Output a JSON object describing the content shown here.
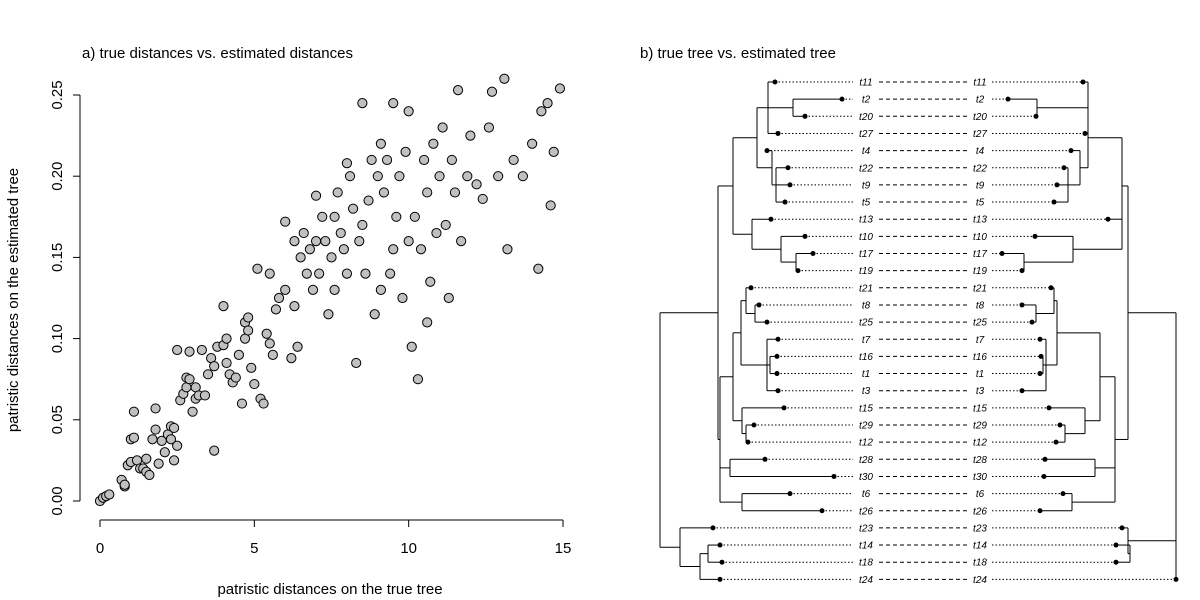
{
  "chart_data": [
    {
      "type": "scatter",
      "title": "a) true distances vs. estimated distances",
      "xlabel": "patristic distances on the true tree",
      "ylabel": "patristic distances on the estimated tree",
      "xlim": [
        0,
        15
      ],
      "ylim": [
        0,
        0.25
      ],
      "x_ticks": [
        "0",
        "5",
        "10",
        "15"
      ],
      "y_ticks": [
        "0.00",
        "0.05",
        "0.10",
        "0.15",
        "0.20",
        "0.25"
      ],
      "point_color": "#c0c0c0",
      "points": [
        [
          0.0,
          0.0
        ],
        [
          0.1,
          0.002
        ],
        [
          0.2,
          0.003
        ],
        [
          0.3,
          0.004
        ],
        [
          0.7,
          0.013
        ],
        [
          0.8,
          0.009
        ],
        [
          0.8,
          0.01
        ],
        [
          0.9,
          0.022
        ],
        [
          1.0,
          0.024
        ],
        [
          1.0,
          0.038
        ],
        [
          1.1,
          0.039
        ],
        [
          1.1,
          0.055
        ],
        [
          1.2,
          0.025
        ],
        [
          1.3,
          0.02
        ],
        [
          1.4,
          0.02
        ],
        [
          1.5,
          0.026
        ],
        [
          1.5,
          0.018
        ],
        [
          1.6,
          0.016
        ],
        [
          1.7,
          0.038
        ],
        [
          1.8,
          0.044
        ],
        [
          1.8,
          0.057
        ],
        [
          1.9,
          0.023
        ],
        [
          2.0,
          0.037
        ],
        [
          2.1,
          0.03
        ],
        [
          2.2,
          0.041
        ],
        [
          2.3,
          0.038
        ],
        [
          2.3,
          0.046
        ],
        [
          2.4,
          0.025
        ],
        [
          2.4,
          0.045
        ],
        [
          2.5,
          0.034
        ],
        [
          2.5,
          0.093
        ],
        [
          2.6,
          0.062
        ],
        [
          2.7,
          0.066
        ],
        [
          2.8,
          0.07
        ],
        [
          2.8,
          0.076
        ],
        [
          2.9,
          0.075
        ],
        [
          2.9,
          0.092
        ],
        [
          3.0,
          0.055
        ],
        [
          3.1,
          0.063
        ],
        [
          3.1,
          0.07
        ],
        [
          3.2,
          0.065
        ],
        [
          3.3,
          0.093
        ],
        [
          3.4,
          0.065
        ],
        [
          3.5,
          0.078
        ],
        [
          3.6,
          0.088
        ],
        [
          3.7,
          0.083
        ],
        [
          3.7,
          0.031
        ],
        [
          3.8,
          0.095
        ],
        [
          4.0,
          0.096
        ],
        [
          4.0,
          0.12
        ],
        [
          4.1,
          0.085
        ],
        [
          4.1,
          0.1
        ],
        [
          4.2,
          0.078
        ],
        [
          4.3,
          0.073
        ],
        [
          4.4,
          0.076
        ],
        [
          4.5,
          0.09
        ],
        [
          4.6,
          0.06
        ],
        [
          4.7,
          0.1
        ],
        [
          4.7,
          0.11
        ],
        [
          4.8,
          0.105
        ],
        [
          4.8,
          0.113
        ],
        [
          4.9,
          0.082
        ],
        [
          5.0,
          0.072
        ],
        [
          5.1,
          0.143
        ],
        [
          5.2,
          0.063
        ],
        [
          5.3,
          0.06
        ],
        [
          5.4,
          0.103
        ],
        [
          5.5,
          0.097
        ],
        [
          5.5,
          0.14
        ],
        [
          5.6,
          0.09
        ],
        [
          5.7,
          0.118
        ],
        [
          5.8,
          0.125
        ],
        [
          6.0,
          0.13
        ],
        [
          6.0,
          0.172
        ],
        [
          6.2,
          0.088
        ],
        [
          6.3,
          0.16
        ],
        [
          6.3,
          0.12
        ],
        [
          6.4,
          0.095
        ],
        [
          6.5,
          0.15
        ],
        [
          6.6,
          0.165
        ],
        [
          6.7,
          0.14
        ],
        [
          6.8,
          0.155
        ],
        [
          6.9,
          0.13
        ],
        [
          7.0,
          0.16
        ],
        [
          7.0,
          0.188
        ],
        [
          7.1,
          0.14
        ],
        [
          7.2,
          0.175
        ],
        [
          7.3,
          0.16
        ],
        [
          7.4,
          0.115
        ],
        [
          7.5,
          0.15
        ],
        [
          7.6,
          0.13
        ],
        [
          7.6,
          0.175
        ],
        [
          7.7,
          0.19
        ],
        [
          7.8,
          0.165
        ],
        [
          7.9,
          0.155
        ],
        [
          8.0,
          0.14
        ],
        [
          8.0,
          0.208
        ],
        [
          8.1,
          0.2
        ],
        [
          8.2,
          0.18
        ],
        [
          8.3,
          0.085
        ],
        [
          8.4,
          0.16
        ],
        [
          8.5,
          0.17
        ],
        [
          8.5,
          0.245
        ],
        [
          8.6,
          0.14
        ],
        [
          8.7,
          0.185
        ],
        [
          8.8,
          0.21
        ],
        [
          8.9,
          0.115
        ],
        [
          9.0,
          0.2
        ],
        [
          9.1,
          0.22
        ],
        [
          9.1,
          0.13
        ],
        [
          9.2,
          0.19
        ],
        [
          9.3,
          0.21
        ],
        [
          9.4,
          0.14
        ],
        [
          9.5,
          0.155
        ],
        [
          9.5,
          0.245
        ],
        [
          9.6,
          0.175
        ],
        [
          9.7,
          0.2
        ],
        [
          9.8,
          0.125
        ],
        [
          9.9,
          0.215
        ],
        [
          10.0,
          0.16
        ],
        [
          10.0,
          0.24
        ],
        [
          10.1,
          0.095
        ],
        [
          10.2,
          0.175
        ],
        [
          10.3,
          0.075
        ],
        [
          10.4,
          0.155
        ],
        [
          10.5,
          0.21
        ],
        [
          10.6,
          0.11
        ],
        [
          10.6,
          0.19
        ],
        [
          10.7,
          0.135
        ],
        [
          10.8,
          0.22
        ],
        [
          10.9,
          0.165
        ],
        [
          11.0,
          0.2
        ],
        [
          11.1,
          0.23
        ],
        [
          11.2,
          0.17
        ],
        [
          11.3,
          0.125
        ],
        [
          11.4,
          0.21
        ],
        [
          11.5,
          0.19
        ],
        [
          11.6,
          0.253
        ],
        [
          11.7,
          0.16
        ],
        [
          11.9,
          0.2
        ],
        [
          12.0,
          0.225
        ],
        [
          12.2,
          0.195
        ],
        [
          12.4,
          0.186
        ],
        [
          12.6,
          0.23
        ],
        [
          12.7,
          0.252
        ],
        [
          12.9,
          0.2
        ],
        [
          13.1,
          0.26
        ],
        [
          13.2,
          0.155
        ],
        [
          13.4,
          0.21
        ],
        [
          13.7,
          0.2
        ],
        [
          14.0,
          0.22
        ],
        [
          14.2,
          0.143
        ],
        [
          14.3,
          0.24
        ],
        [
          14.5,
          0.245
        ],
        [
          14.6,
          0.182
        ],
        [
          14.7,
          0.215
        ],
        [
          14.9,
          0.254
        ]
      ]
    },
    {
      "type": "tree",
      "title": "b) true tree vs. estimated tree",
      "tips_left": [
        "t11",
        "t2",
        "t20",
        "t27",
        "t4",
        "t22",
        "t9",
        "t5",
        "t13",
        "t10",
        "t17",
        "t19",
        "t21",
        "t8",
        "t25",
        "t7",
        "t16",
        "t1",
        "t3",
        "t15",
        "t29",
        "t12",
        "t28",
        "t30",
        "t6",
        "t26",
        "t23",
        "t14",
        "t18",
        "t24"
      ],
      "tips_right": [
        "t11",
        "t2",
        "t20",
        "t27",
        "t4",
        "t22",
        "t9",
        "t5",
        "t13",
        "t10",
        "t17",
        "t19",
        "t21",
        "t8",
        "t25",
        "t7",
        "t16",
        "t1",
        "t3",
        "t15",
        "t29",
        "t12",
        "t28",
        "t30",
        "t6",
        "t26",
        "t23",
        "t14",
        "t18",
        "t24"
      ]
    }
  ]
}
